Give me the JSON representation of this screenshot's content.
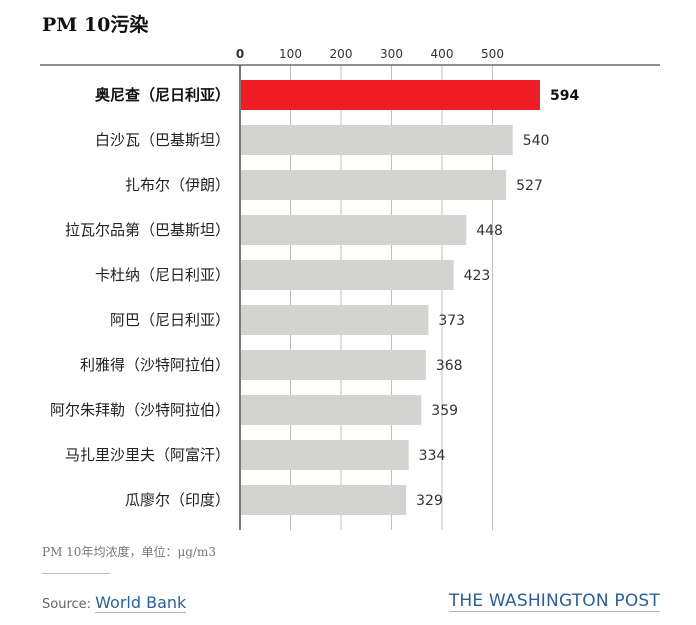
{
  "header": {
    "title": "PM 10污染"
  },
  "chart_data": {
    "type": "bar",
    "orientation": "horizontal",
    "title": "PM 10污染",
    "categories": [
      "奥尼查（尼日利亚）",
      "白沙瓦（巴基斯坦）",
      "扎布尔（伊朗）",
      "拉瓦尔品第（巴基斯坦）",
      "卡杜纳（尼日利亚）",
      "阿巴（尼日利亚）",
      "利雅得（沙特阿拉伯）",
      "阿尔朱拜勒（沙特阿拉伯）",
      "马扎里沙里夫（阿富汗）",
      "瓜廖尔（印度）"
    ],
    "values": [
      594,
      540,
      527,
      448,
      423,
      373,
      368,
      359,
      334,
      329
    ],
    "xticks": [
      0,
      100,
      200,
      300,
      400,
      500
    ],
    "xlim": [
      0,
      600
    ],
    "grid": true,
    "highlight_index": 0,
    "colors": {
      "highlight": "#ee1c25",
      "bar": "#d3d3d0",
      "grid": "#bfbfbf",
      "axis": "#222222"
    }
  },
  "footer": {
    "note": "PM 10年均浓度，单位：μg/m3",
    "source_prefix": "Source: ",
    "source_link": "World Bank",
    "brand": "THE WASHINGTON POST"
  }
}
